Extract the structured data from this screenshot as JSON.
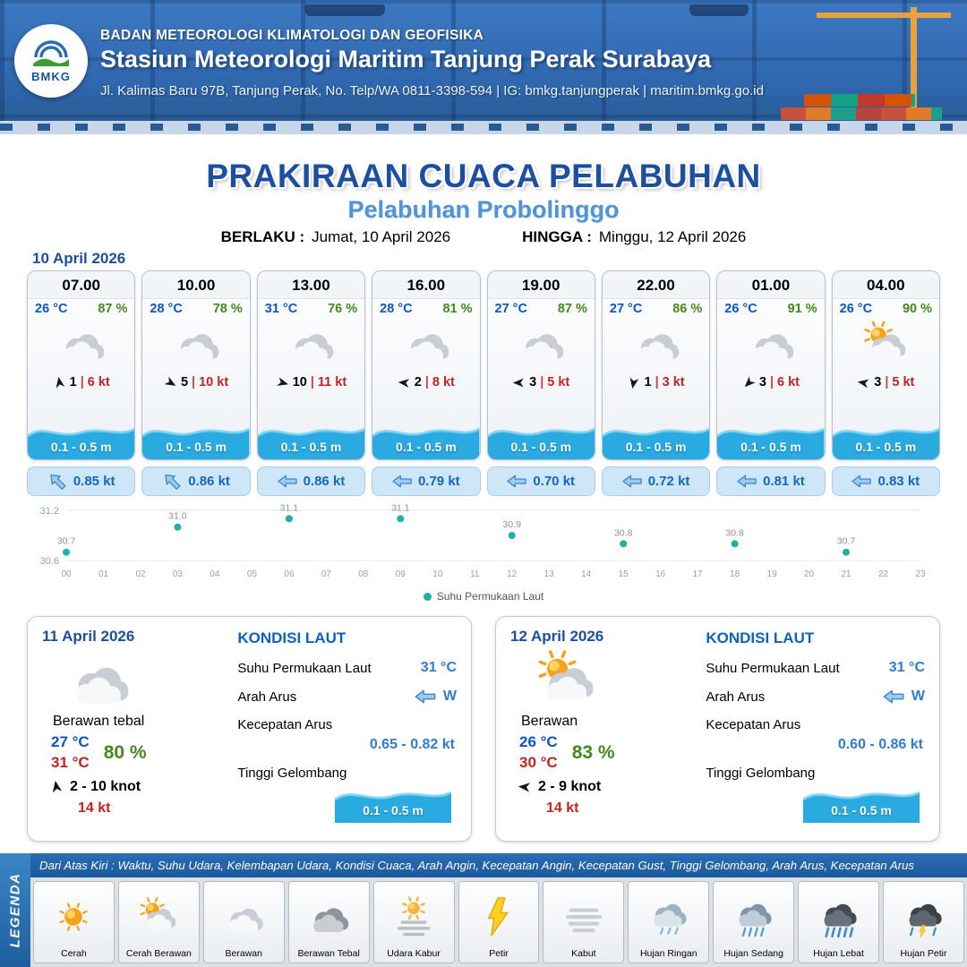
{
  "ui": {
    "sep": "|"
  },
  "colors": {
    "accent_blue": "#1d4fa0",
    "subtitle_blue": "#4f93d8",
    "wave_blue": "#29abe2",
    "temp_blue": "#0a57c2",
    "rh_green": "#44891d",
    "speed_red": "#c42323",
    "current_text_blue": "#1566c0",
    "sst_point_teal": "#1fb0a8"
  },
  "header": {
    "logo_text": "BMKG",
    "org": "BADAN METEOROLOGI KLIMATOLOGI DAN GEOFISIKA",
    "station": "Stasiun Meteorologi Maritim Tanjung Perak Surabaya",
    "address": "Jl. Kalimas Baru 97B, Tanjung Perak, No. Telp/WA 0811-3398-594 | IG: bmkg.tanjungperak | maritim.bmkg.go.id"
  },
  "title": {
    "main": "PRAKIRAAN CUACA PELABUHAN",
    "subtitle": "Pelabuhan Probolinggo",
    "berlaku_label": "BERLAKU :",
    "berlaku_value": "Jumat, 10 April 2026",
    "hingga_label": "HINGGA :",
    "hingga_value": "Minggu, 12 April 2026"
  },
  "forecast_day1": {
    "date": "10 April 2026",
    "cards": [
      {
        "time": "07.00",
        "temp": "26 °C",
        "rh": "87 %",
        "icon": "berawan",
        "wind_dir_deg": -100,
        "wind_val": "1",
        "wind_speed": "6 kt",
        "wave": "0.1 - 0.5 m",
        "current_dir_deg": 45,
        "current": "0.85 kt"
      },
      {
        "time": "10.00",
        "temp": "28 °C",
        "rh": "78 %",
        "icon": "berawan",
        "wind_dir_deg": 30,
        "wind_val": "5",
        "wind_speed": "10 kt",
        "wave": "0.1 - 0.5 m",
        "current_dir_deg": 45,
        "current": "0.86 kt"
      },
      {
        "time": "13.00",
        "temp": "31 °C",
        "rh": "76 %",
        "icon": "berawan",
        "wind_dir_deg": 15,
        "wind_val": "10",
        "wind_speed": "11 kt",
        "wave": "0.1 - 0.5 m",
        "current_dir_deg": 0,
        "current": "0.86 kt"
      },
      {
        "time": "16.00",
        "temp": "28 °C",
        "rh": "81 %",
        "icon": "berawan",
        "wind_dir_deg": 185,
        "wind_val": "2",
        "wind_speed": "8 kt",
        "wave": "0.1 - 0.5 m",
        "current_dir_deg": 0,
        "current": "0.79 kt"
      },
      {
        "time": "19.00",
        "temp": "27 °C",
        "rh": "87 %",
        "icon": "berawan",
        "wind_dir_deg": 180,
        "wind_val": "3",
        "wind_speed": "5 kt",
        "wave": "0.1 - 0.5 m",
        "current_dir_deg": 0,
        "current": "0.70 kt"
      },
      {
        "time": "22.00",
        "temp": "27 °C",
        "rh": "86 %",
        "icon": "berawan",
        "wind_dir_deg": 100,
        "wind_val": "1",
        "wind_speed": "3 kt",
        "wave": "0.1 - 0.5 m",
        "current_dir_deg": 0,
        "current": "0.72 kt"
      },
      {
        "time": "01.00",
        "temp": "26 °C",
        "rh": "91 %",
        "icon": "berawan",
        "wind_dir_deg": 135,
        "wind_val": "3",
        "wind_speed": "6 kt",
        "wave": "0.1 - 0.5 m",
        "current_dir_deg": 0,
        "current": "0.81 kt"
      },
      {
        "time": "04.00",
        "temp": "26 °C",
        "rh": "90 %",
        "icon": "cerah-berawan",
        "wind_dir_deg": 190,
        "wind_val": "3",
        "wind_speed": "5 kt",
        "wave": "0.1 - 0.5 m",
        "current_dir_deg": 0,
        "current": "0.83 kt"
      }
    ]
  },
  "chart_data": {
    "type": "scatter",
    "series_name": "Suhu Permukaan Laut",
    "x": [
      0,
      3,
      6,
      9,
      12,
      15,
      18,
      21
    ],
    "values": [
      30.7,
      31.0,
      31.1,
      31.1,
      30.9,
      30.8,
      30.8,
      30.7
    ],
    "x_ticks": [
      "00",
      "01",
      "02",
      "03",
      "04",
      "05",
      "06",
      "07",
      "08",
      "09",
      "10",
      "11",
      "12",
      "13",
      "14",
      "15",
      "16",
      "17",
      "18",
      "19",
      "20",
      "21",
      "22",
      "23"
    ],
    "ylim": [
      30.6,
      31.2
    ],
    "y_ticks": [
      30.6,
      31.2
    ],
    "point_color": "#1fb0a8",
    "legend_position": "bottom",
    "grid": "horizontal-only"
  },
  "daily_cards": [
    {
      "date": "11 April 2026",
      "icon": "berawan",
      "condition": "Berawan tebal",
      "temp_min": "27 °C",
      "rh": "80 %",
      "temp_max": "31 °C",
      "wind_dir_deg": -100,
      "wind_range": "2 - 10 knot",
      "gust": "14 kt",
      "sea": {
        "title": "KONDISI LAUT",
        "sst_label": "Suhu Permukaan Laut",
        "sst": "31 °C",
        "current_dir_label": "Arah Arus",
        "current_dir": "W",
        "current_speed_label": "Kecepatan Arus",
        "current_speed": "0.65 - 0.82 kt",
        "wave_label": "Tinggi Gelombang",
        "wave": "0.1 - 0.5 m"
      }
    },
    {
      "date": "12 April 2026",
      "icon": "cerah-berawan",
      "condition": "Berawan",
      "temp_min": "26 °C",
      "rh": "83 %",
      "temp_max": "30 °C",
      "wind_dir_deg": 185,
      "wind_range": "2 - 9 knot",
      "gust": "14 kt",
      "sea": {
        "title": "KONDISI LAUT",
        "sst_label": "Suhu Permukaan Laut",
        "sst": "31 °C",
        "current_dir_label": "Arah Arus",
        "current_dir": "W",
        "current_speed_label": "Kecepatan Arus",
        "current_speed": "0.60 - 0.86 kt",
        "wave_label": "Tinggi Gelombang",
        "wave": "0.1 - 0.5 m"
      }
    }
  ],
  "legend": {
    "side_label": "LEGENDA",
    "note": "Dari Atas Kiri : Waktu, Suhu Udara, Kelembapan Udara, Kondisi Cuaca, Arah Angin, Kecepatan Angin, Kecepatan Gust, Tinggi Gelombang, Arah Arus, Kecepatan Arus",
    "items": [
      {
        "icon": "cerah",
        "label": "Cerah"
      },
      {
        "icon": "cerah-berawan",
        "label": "Cerah Berawan"
      },
      {
        "icon": "berawan",
        "label": "Berawan"
      },
      {
        "icon": "berawan-tebal",
        "label": "Berawan Tebal"
      },
      {
        "icon": "udara-kabur",
        "label": "Udara Kabur"
      },
      {
        "icon": "petir",
        "label": "Petir"
      },
      {
        "icon": "kabut",
        "label": "Kabut"
      },
      {
        "icon": "hujan-ringan",
        "label": "Hujan Ringan"
      },
      {
        "icon": "hujan-sedang",
        "label": "Hujan Sedang"
      },
      {
        "icon": "hujan-lebat",
        "label": "Hujan Lebat"
      },
      {
        "icon": "hujan-petir",
        "label": "Hujan Petir"
      }
    ]
  }
}
